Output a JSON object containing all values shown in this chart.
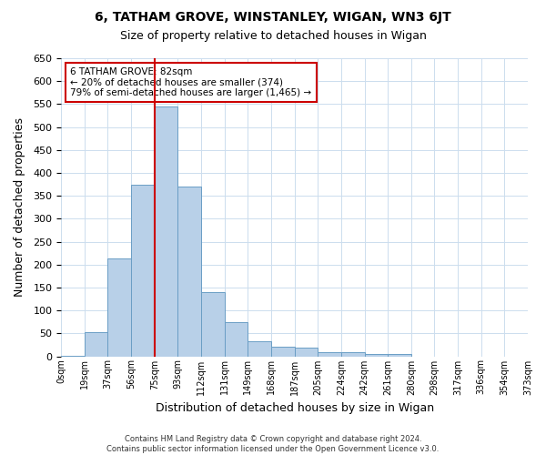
{
  "title": "6, TATHAM GROVE, WINSTANLEY, WIGAN, WN3 6JT",
  "subtitle": "Size of property relative to detached houses in Wigan",
  "xlabel": "Distribution of detached houses by size in Wigan",
  "ylabel": "Number of detached properties",
  "bar_labels": [
    "0sqm",
    "19sqm",
    "37sqm",
    "56sqm",
    "75sqm",
    "93sqm",
    "112sqm",
    "131sqm",
    "149sqm",
    "168sqm",
    "187sqm",
    "205sqm",
    "224sqm",
    "242sqm",
    "261sqm",
    "280sqm",
    "298sqm",
    "317sqm",
    "336sqm",
    "354sqm",
    "373sqm"
  ],
  "bar_values": [
    2,
    52,
    213,
    375,
    545,
    370,
    140,
    75,
    33,
    20,
    18,
    8,
    8,
    5,
    5,
    0,
    0,
    0,
    0,
    0
  ],
  "bar_color": "#b8d0e8",
  "bar_edge_color": "#6a9ec5",
  "vline_x": 4,
  "vline_color": "#cc0000",
  "ylim": [
    0,
    650
  ],
  "yticks": [
    0,
    50,
    100,
    150,
    200,
    250,
    300,
    350,
    400,
    450,
    500,
    550,
    600,
    650
  ],
  "annotation_title": "6 TATHAM GROVE: 82sqm",
  "annotation_line1": "← 20% of detached houses are smaller (374)",
  "annotation_line2": "79% of semi-detached houses are larger (1,465) →",
  "footer_line1": "Contains HM Land Registry data © Crown copyright and database right 2024.",
  "footer_line2": "Contains public sector information licensed under the Open Government Licence v3.0.",
  "bg_color": "#ffffff",
  "grid_color": "#ccddee"
}
